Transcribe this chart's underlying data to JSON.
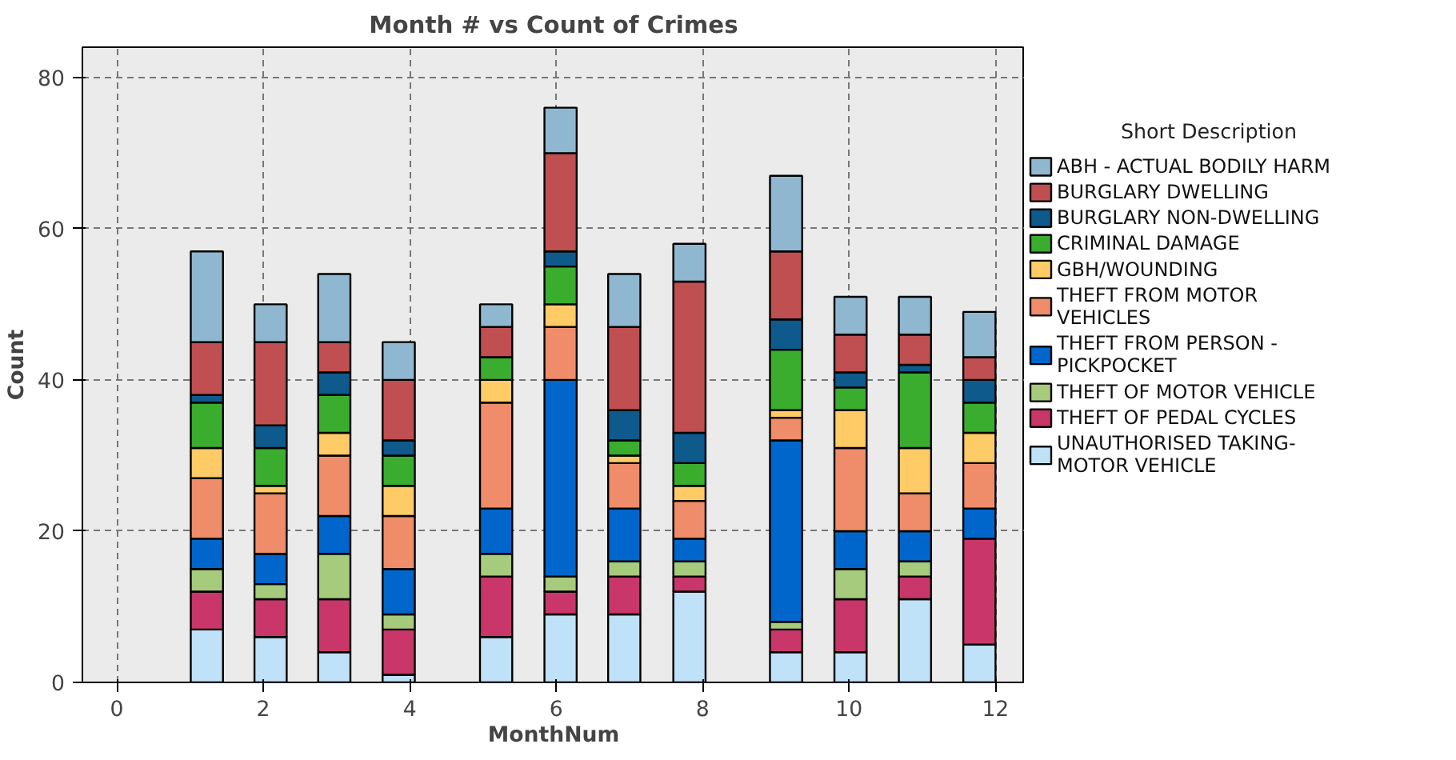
{
  "chart_data": {
    "type": "bar",
    "stacked": true,
    "title": "Month # vs Count of Crimes",
    "xlabel": "MonthNum",
    "ylabel": "Count",
    "legend_title": "Short Description",
    "legend": "right",
    "grid": true,
    "x": [
      1.23,
      2.1,
      2.97,
      3.85,
      5.18,
      6.06,
      6.93,
      7.82,
      9.14,
      10.02,
      10.9,
      11.78
    ],
    "xlim": [
      -0.47,
      12.4
    ],
    "xticks": [
      0,
      2,
      4,
      6,
      8,
      10,
      12
    ],
    "ylim": [
      0,
      84
    ],
    "yticks": [
      0,
      20,
      40,
      60,
      80
    ],
    "series": [
      {
        "name": "UNAUTHORISED TAKING-MOTOR VEHICLE",
        "color": "#c0e2f8",
        "values": [
          7,
          6,
          4,
          1,
          6,
          9,
          9,
          12,
          4,
          4,
          11,
          5
        ]
      },
      {
        "name": "THEFT OF PEDAL CYCLES",
        "color": "#c9366a",
        "values": [
          5,
          5,
          7,
          6,
          8,
          3,
          5,
          2,
          3,
          7,
          3,
          14
        ]
      },
      {
        "name": "THEFT OF MOTOR VEHICLE",
        "color": "#a6cb7d",
        "values": [
          3,
          2,
          6,
          2,
          3,
          2,
          2,
          2,
          1,
          4,
          2,
          0
        ]
      },
      {
        "name": "THEFT FROM PERSON - PICKPOCKET",
        "color": "#0066cc",
        "values": [
          4,
          4,
          5,
          6,
          6,
          26,
          7,
          3,
          24,
          5,
          4,
          4
        ]
      },
      {
        "name": "THEFT FROM MOTOR VEHICLES",
        "color": "#ef8c69",
        "values": [
          8,
          8,
          8,
          7,
          14,
          7,
          6,
          5,
          3,
          11,
          5,
          6
        ]
      },
      {
        "name": "GBH/WOUNDING",
        "color": "#fecb66",
        "values": [
          4,
          1,
          3,
          4,
          3,
          3,
          1,
          2,
          1,
          5,
          6,
          4
        ]
      },
      {
        "name": "CRIMINAL DAMAGE",
        "color": "#3aad2e",
        "values": [
          6,
          5,
          5,
          4,
          3,
          5,
          2,
          3,
          8,
          3,
          10,
          4
        ]
      },
      {
        "name": "BURGLARY NON-DWELLING",
        "color": "#0e5a8c",
        "values": [
          1,
          3,
          3,
          2,
          0,
          2,
          4,
          4,
          4,
          2,
          1,
          3
        ]
      },
      {
        "name": "BURGLARY DWELLING",
        "color": "#c04f52",
        "values": [
          7,
          11,
          4,
          8,
          4,
          13,
          11,
          20,
          9,
          5,
          4,
          3
        ]
      },
      {
        "name": "ABH - ACTUAL BODILY HARM",
        "color": "#8fb8d0",
        "values": [
          12,
          5,
          9,
          5,
          3,
          6,
          7,
          5,
          10,
          5,
          5,
          6
        ]
      }
    ]
  }
}
